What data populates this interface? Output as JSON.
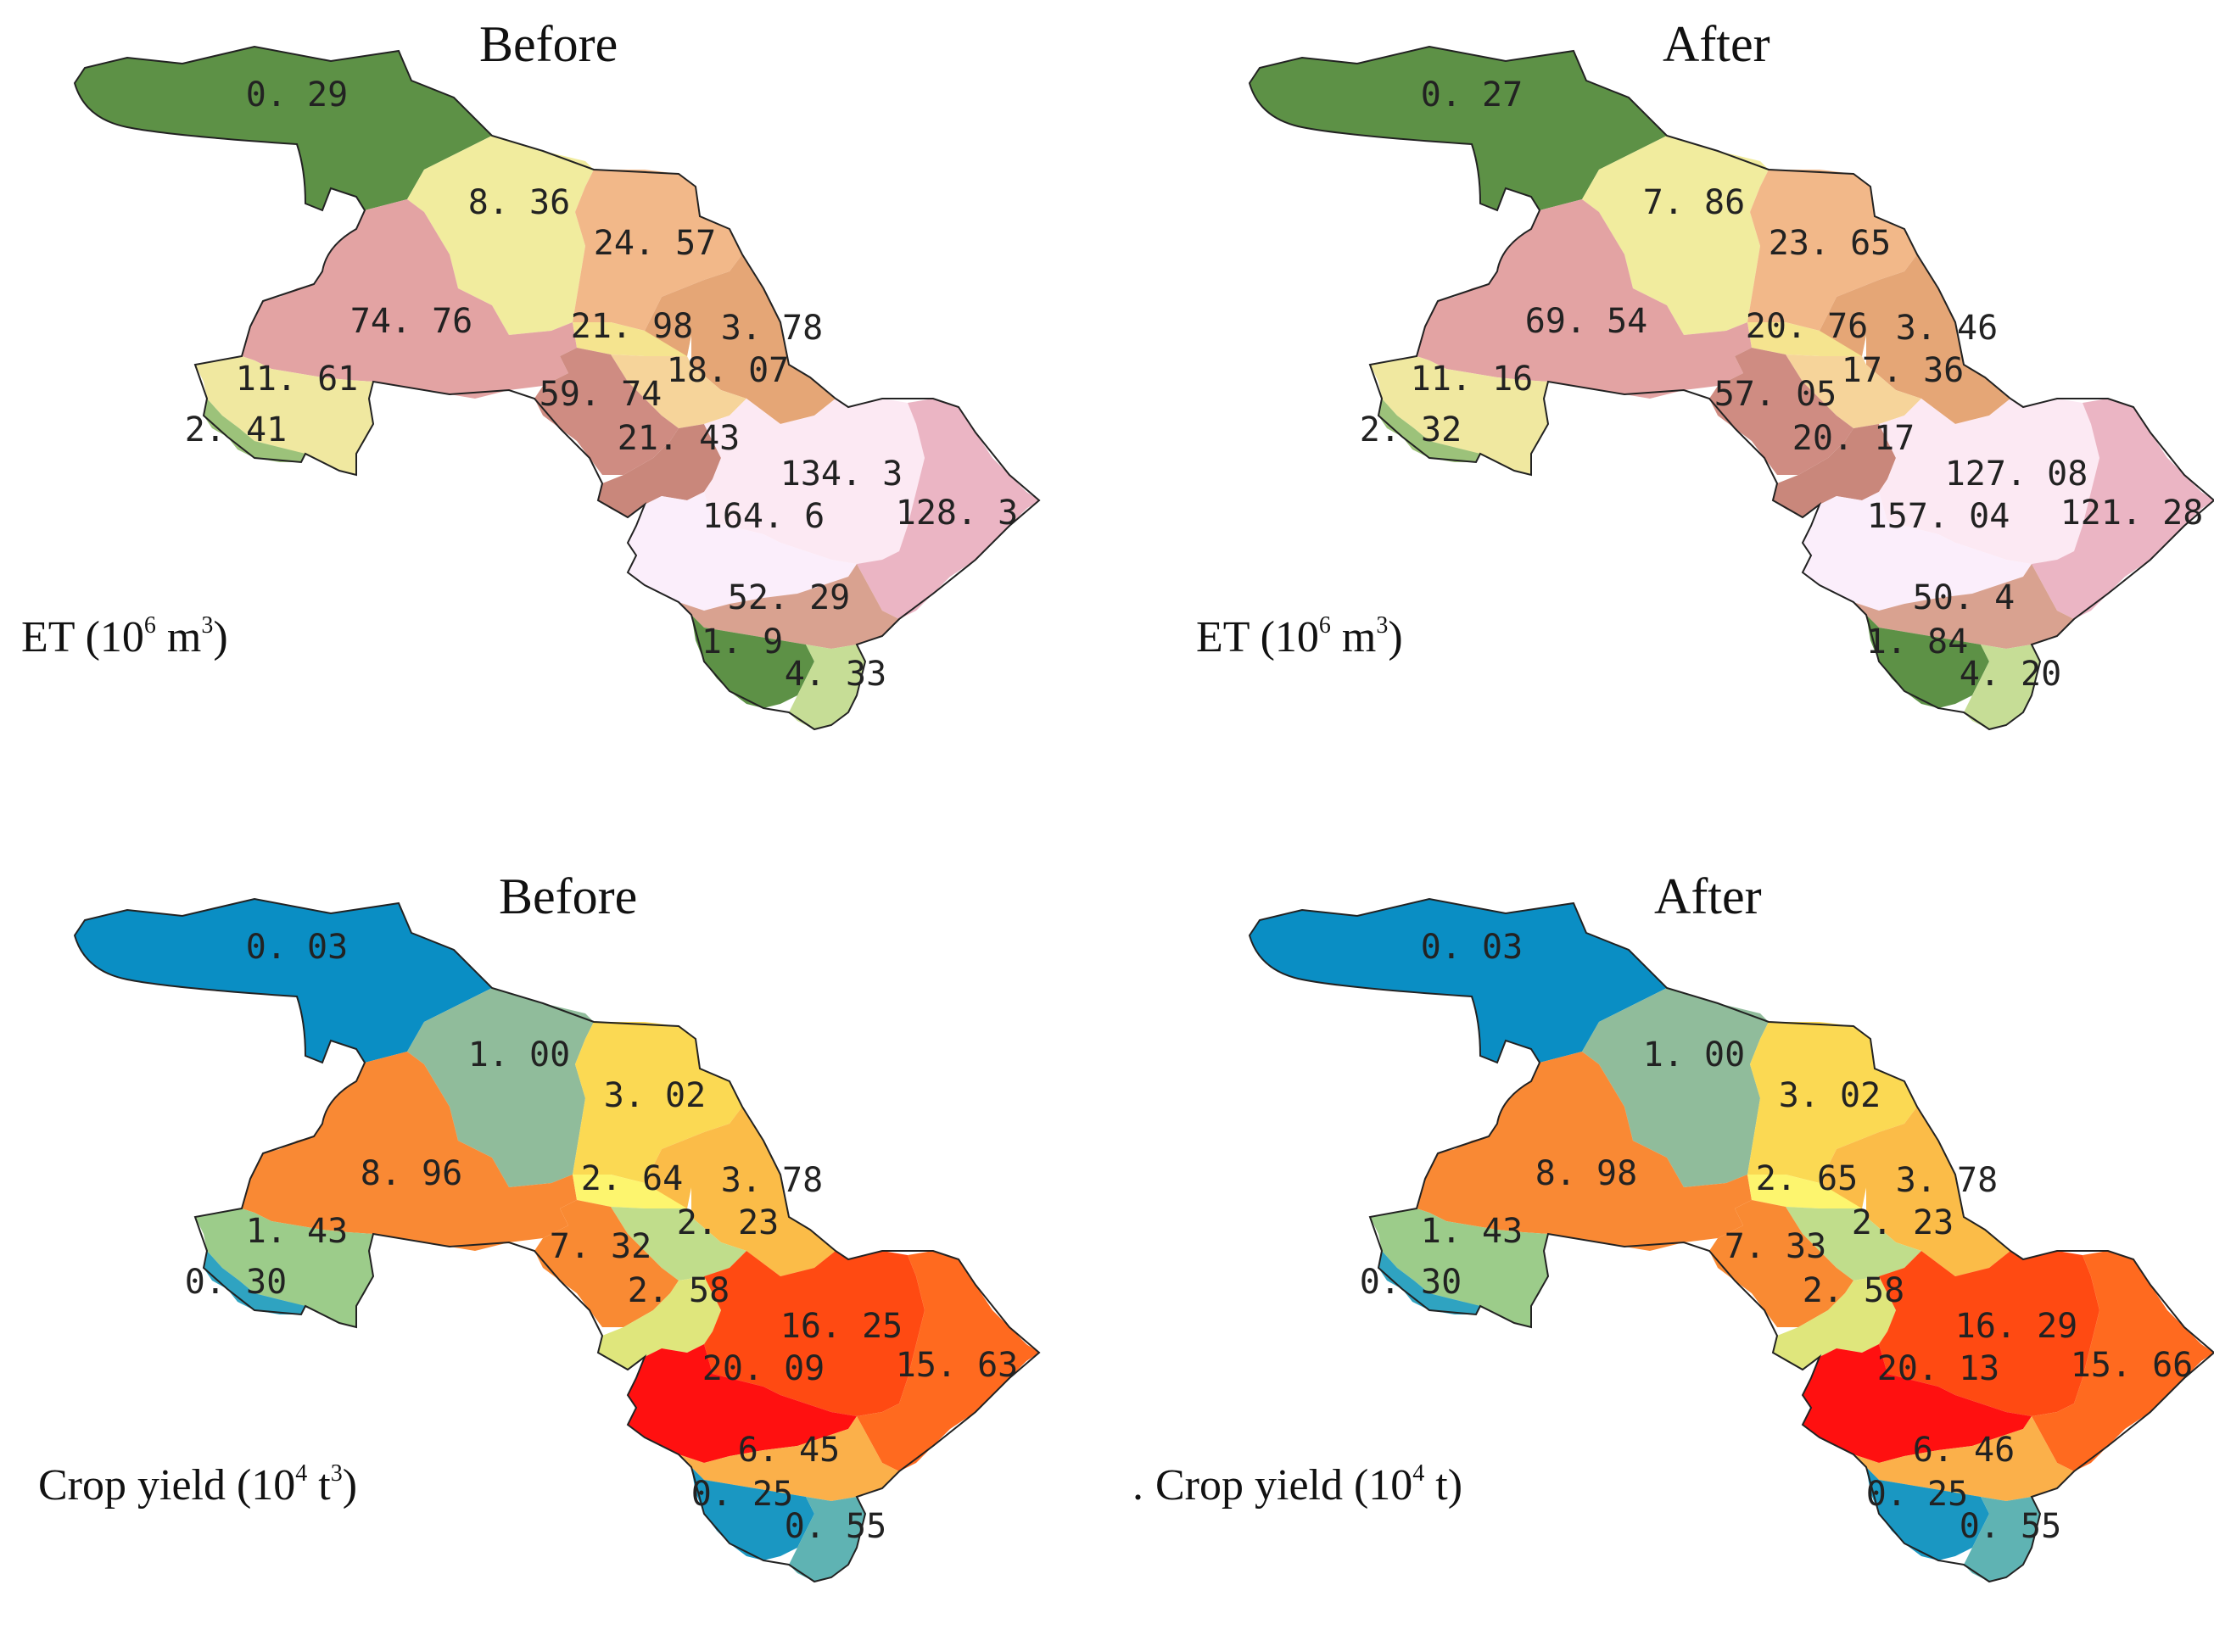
{
  "panels": [
    {
      "title": "Before",
      "caption": {
        "prefix": "",
        "main": "ET (10",
        "sup1": "6",
        "mid": " m",
        "sup2": "3",
        "end": ")"
      },
      "values": [
        "0. 29",
        "8. 36",
        "24. 57",
        "74. 76",
        "21. 98",
        "3. 78",
        "11. 61",
        "18. 07",
        "59. 74",
        "2. 41",
        "21. 43",
        "134. 3",
        "164. 6",
        "128. 3",
        "52. 29",
        "1. 9",
        "4. 33"
      ],
      "colors": [
        "#5d9146",
        "#f1ec9e",
        "#f2b889",
        "#e3a3a3",
        "#f5e48f",
        "#e5a676",
        "#f0e8a0",
        "#f6d49a",
        "#cf8c82",
        "#9cc27a",
        "#c9877b",
        "#fce9f3",
        "#fbeefb",
        "#ebb5c4",
        "#d9a290",
        "#5d9146",
        "#c6dd96"
      ]
    },
    {
      "title": "After",
      "caption": {
        "prefix": "",
        "main": "ET (10",
        "sup1": "6",
        "mid": " m",
        "sup2": "3",
        "end": ")"
      },
      "values": [
        "0. 27",
        "7. 86",
        "23. 65",
        "69. 54",
        "20. 76",
        "3. 46",
        "11. 16",
        "17. 36",
        "57. 05",
        "2. 32",
        "20. 17",
        "127. 08",
        "157. 04",
        "121. 28",
        "50. 4",
        "1. 84",
        "4. 20"
      ],
      "colors": [
        "#5d9146",
        "#f1ec9e",
        "#f2b889",
        "#e3a3a3",
        "#f5e48f",
        "#e5a676",
        "#f0e8a0",
        "#f6d49a",
        "#cf8c82",
        "#9cc27a",
        "#c9877b",
        "#fce9f3",
        "#fbeefb",
        "#ebb5c4",
        "#d9a290",
        "#5d9146",
        "#c6dd96"
      ]
    },
    {
      "title": "Before",
      "caption": {
        "prefix": "",
        "main": "Crop yield (10",
        "sup1": "4",
        "mid": " t",
        "sup2": "3",
        "end": ")"
      },
      "values": [
        "0. 03",
        "1. 00",
        "3. 02",
        "8. 96",
        "2. 64",
        "3. 78",
        "1. 43",
        "2. 23",
        "7. 32",
        "0. 30",
        "2. 58",
        "16. 25",
        "20. 09",
        "15. 63",
        "6. 45",
        "0. 25",
        "0. 55"
      ],
      "colors": [
        "#0a8ec4",
        "#90bc9b",
        "#fbd953",
        "#f98934",
        "#fdf56e",
        "#fbbc48",
        "#9ccc8a",
        "#c0dd8b",
        "#f98a33",
        "#2fa3c1",
        "#dfe67c",
        "#ff4a12",
        "#ff1010",
        "#ff6a1f",
        "#fbb04a",
        "#1a97c2",
        "#5fb3b3"
      ]
    },
    {
      "title": "After",
      "caption": {
        "prefix": ".",
        "main": "Crop yield (10",
        "sup1": "4",
        "mid": " t",
        "sup2": "",
        "end": ")"
      },
      "values": [
        "0. 03",
        "1. 00",
        "3. 02",
        "8. 98",
        "2. 65",
        "3. 78",
        "1. 43",
        "2. 23",
        "7. 33",
        "0. 30",
        "2. 58",
        "16. 29",
        "20. 13",
        "15. 66",
        "6. 46",
        "0. 25",
        "0. 55"
      ],
      "colors": [
        "#0a8ec4",
        "#90bc9b",
        "#fbd953",
        "#f98934",
        "#fdf56e",
        "#fbbc48",
        "#9ccc8a",
        "#c0dd8b",
        "#f98a33",
        "#2fa3c1",
        "#dfe67c",
        "#ff4a12",
        "#ff1010",
        "#ff6a1f",
        "#fbb04a",
        "#1a97c2",
        "#5fb3b3"
      ]
    }
  ]
}
